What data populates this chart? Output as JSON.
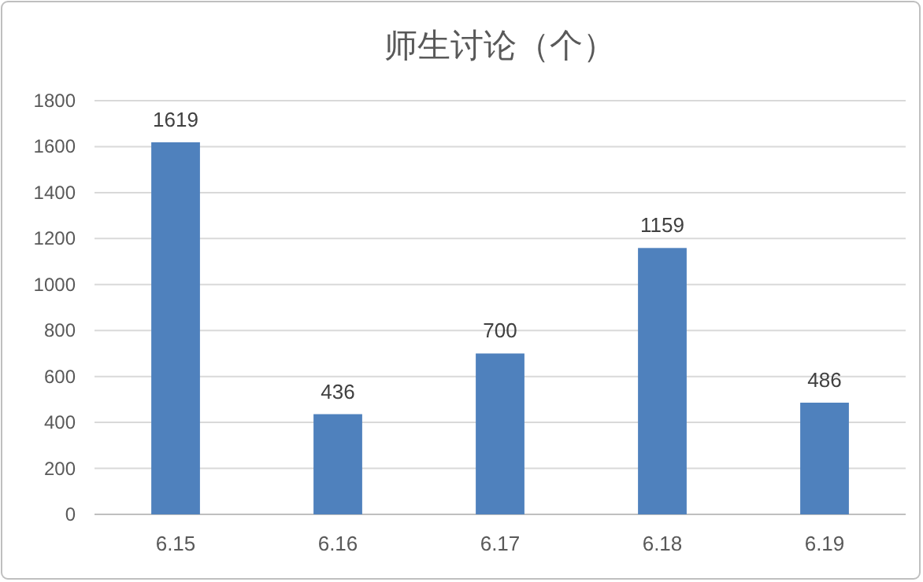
{
  "chart_data": {
    "type": "bar",
    "title": "师生讨论（个）",
    "categories": [
      "6.15",
      "6.16",
      "6.17",
      "6.18",
      "6.19"
    ],
    "values": [
      1619,
      436,
      700,
      1159,
      486
    ],
    "color": "#4f81bd",
    "ylim": [
      0,
      1800
    ],
    "yticks": [
      0,
      200,
      400,
      600,
      800,
      1000,
      1200,
      1400,
      1600,
      1800
    ],
    "grid": "y",
    "data_labels": true
  }
}
